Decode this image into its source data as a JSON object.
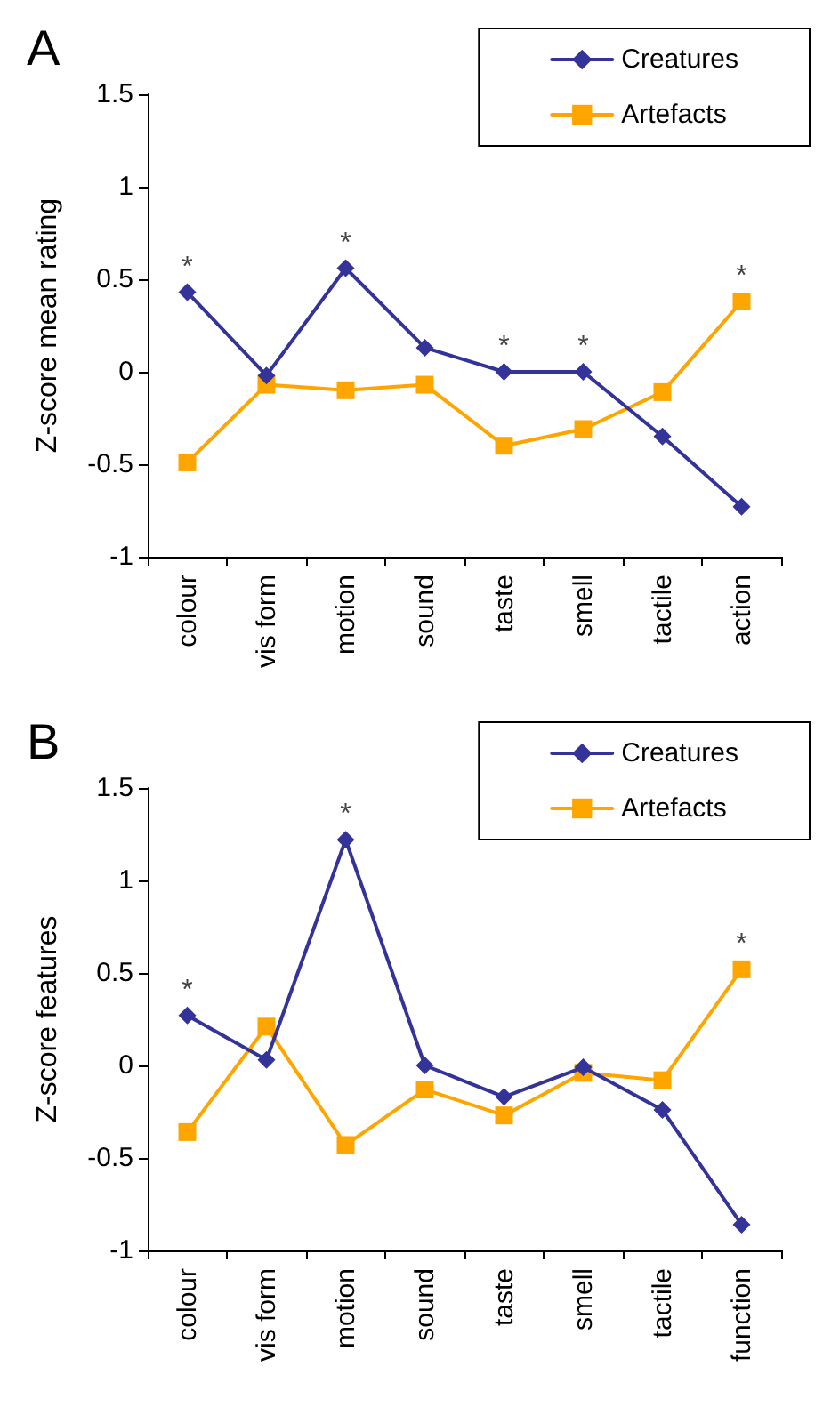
{
  "chart_data": [
    {
      "type": "line",
      "title": "A",
      "ylabel": "Z-score mean rating",
      "categories": [
        "colour",
        "vis form",
        "motion",
        "sound",
        "taste",
        "smell",
        "tactile",
        "action"
      ],
      "series": [
        {
          "name": "Creatures",
          "color": "#333399",
          "marker": "diamond",
          "values": [
            0.43,
            -0.02,
            0.56,
            0.13,
            0,
            0,
            -0.35,
            -0.73
          ]
        },
        {
          "name": "Artefacts",
          "color": "#ffa500",
          "marker": "square",
          "values": [
            -0.49,
            -0.07,
            -0.1,
            -0.07,
            -0.4,
            -0.31,
            -0.11,
            0.38
          ]
        }
      ],
      "ylim": [
        -1,
        1.5
      ],
      "yticks": [
        -1,
        -0.5,
        0,
        0.5,
        1,
        1.5
      ],
      "grid": false,
      "legend": "top right",
      "line_style": "solid",
      "annotations": [
        {
          "text": "*",
          "x": "colour",
          "y": 0.43
        },
        {
          "text": "*",
          "x": "motion",
          "y": 0.56
        },
        {
          "text": "*",
          "x": "taste",
          "y": 0
        },
        {
          "text": "*",
          "x": "smell",
          "y": 0
        },
        {
          "text": "*",
          "x": "action",
          "y": 0.38
        }
      ]
    },
    {
      "type": "line",
      "title": "B",
      "ylabel": "Z-score features",
      "categories": [
        "colour",
        "vis form",
        "motion",
        "sound",
        "taste",
        "smell",
        "tactile",
        "function"
      ],
      "series": [
        {
          "name": "Creatures",
          "color": "#333399",
          "marker": "diamond",
          "values": [
            0.27,
            0.03,
            1.22,
            0,
            -0.17,
            -0.01,
            -0.24,
            -0.86
          ]
        },
        {
          "name": "Artefacts",
          "color": "#ffa500",
          "marker": "square",
          "values": [
            -0.36,
            0.21,
            -0.43,
            -0.13,
            -0.27,
            -0.04,
            -0.08,
            0.52
          ]
        }
      ],
      "ylim": [
        -1,
        1.5
      ],
      "yticks": [
        -1,
        -0.5,
        0,
        0.5,
        1,
        1.5
      ],
      "grid": false,
      "legend": "top right",
      "line_style": "solid",
      "annotations": [
        {
          "text": "*",
          "x": "colour",
          "y": 0.27
        },
        {
          "text": "*",
          "x": "motion",
          "y": 1.22
        },
        {
          "text": "*",
          "x": "function",
          "y": 0.52
        }
      ]
    }
  ]
}
